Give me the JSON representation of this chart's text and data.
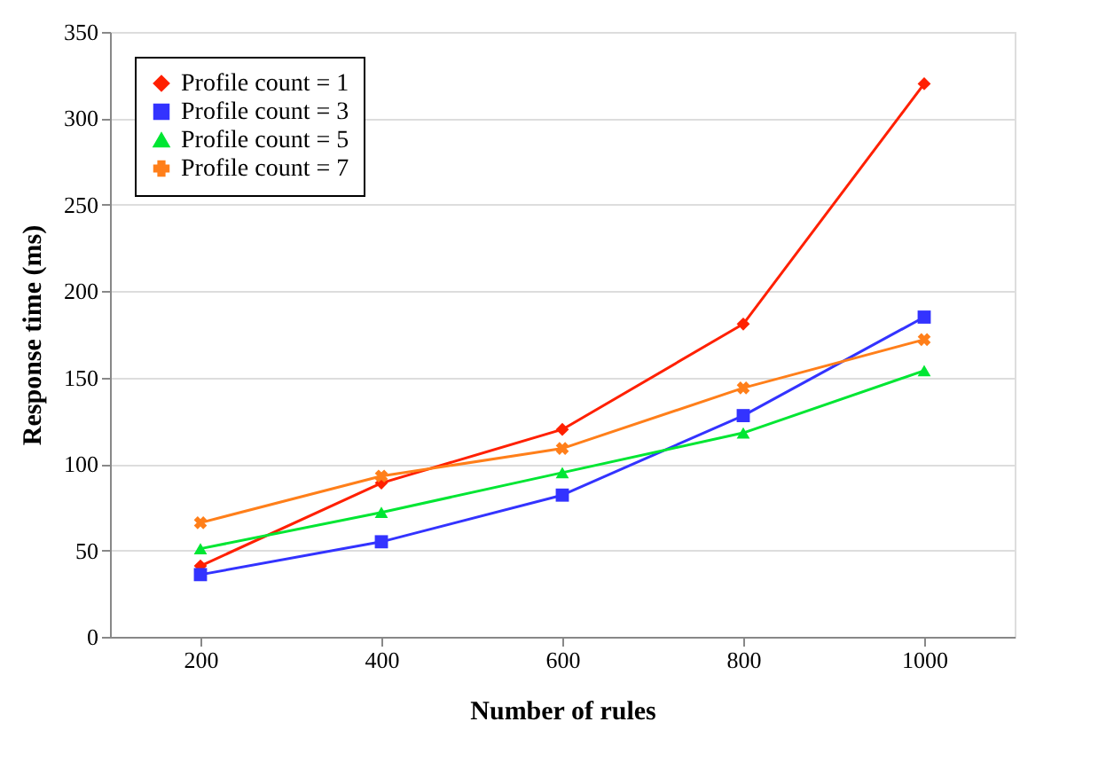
{
  "chart_data": {
    "type": "line",
    "xlabel": "Number of rules",
    "ylabel": "Response time (ms)",
    "categories": [
      "200",
      "400",
      "600",
      "800",
      "1000"
    ],
    "series": [
      {
        "name": "Profile count = 1",
        "color": "#ff2000",
        "marker": "diamond",
        "values": [
          41,
          89,
          120,
          181,
          320
        ]
      },
      {
        "name": "Profile count = 3",
        "color": "#3333ff",
        "marker": "square",
        "values": [
          36,
          55,
          82,
          128,
          185
        ]
      },
      {
        "name": "Profile count = 5",
        "color": "#00e633",
        "marker": "triangle",
        "values": [
          51,
          72,
          95,
          118,
          154
        ]
      },
      {
        "name": "Profile count = 7",
        "color": "#ff7f1a",
        "marker": "cross",
        "values": [
          66,
          93,
          109,
          144,
          172
        ]
      }
    ],
    "ylim": [
      0,
      350
    ],
    "yticks": [
      0,
      50,
      100,
      150,
      200,
      250,
      300,
      350
    ],
    "grid": "y",
    "legend": "top left",
    "line_style": "solid"
  }
}
